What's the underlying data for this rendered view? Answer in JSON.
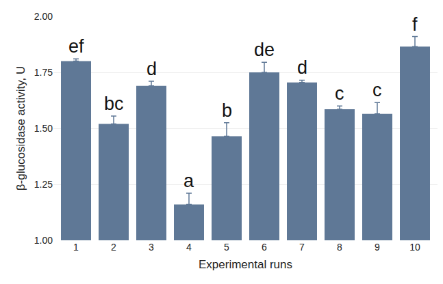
{
  "chart_data": {
    "type": "bar",
    "x_label": "Experimental runs",
    "y_label": "β-glucosidase activity, U",
    "categories": [
      "1",
      "2",
      "3",
      "4",
      "5",
      "6",
      "7",
      "8",
      "9",
      "10"
    ],
    "values": [
      1.8,
      1.52,
      1.69,
      1.16,
      1.465,
      1.75,
      1.705,
      1.585,
      1.565,
      1.865
    ],
    "error": [
      0.01,
      0.035,
      0.02,
      0.05,
      0.06,
      0.045,
      0.01,
      0.015,
      0.05,
      0.045
    ],
    "annotations": [
      "ef",
      "bc",
      "d",
      "a",
      "b",
      "de",
      "d",
      "c",
      "c",
      "f"
    ],
    "color": "#5f7896",
    "ylim": [
      1.0,
      2.0
    ],
    "yticks": [
      {
        "value": 1.0,
        "label": "1.00"
      },
      {
        "value": 1.25,
        "label": "1.25"
      },
      {
        "value": 1.5,
        "label": "1.50"
      },
      {
        "value": 1.75,
        "label": "1.75"
      },
      {
        "value": 2.0,
        "label": "2.00"
      }
    ],
    "grid": true
  }
}
